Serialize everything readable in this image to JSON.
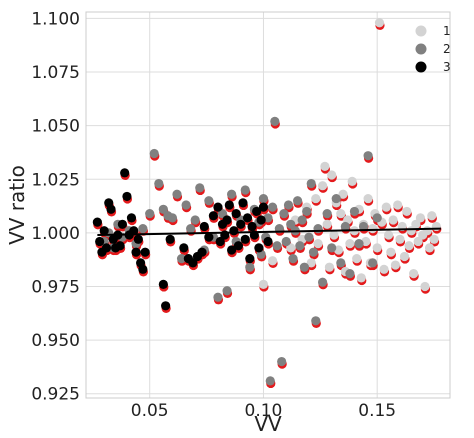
{
  "chart_data": {
    "type": "scatter",
    "title": "",
    "xlabel": "VV",
    "ylabel": "VV ratio",
    "xlim": [
      0.022,
      0.182
    ],
    "ylim": [
      0.923,
      1.103
    ],
    "x_ticks": [
      0.05,
      0.1,
      0.15
    ],
    "x_tick_labels": [
      "0.05",
      "0.10",
      "0.15"
    ],
    "y_ticks": [
      0.925,
      0.95,
      0.975,
      1.0,
      1.025,
      1.05,
      1.075,
      1.1
    ],
    "y_tick_labels": [
      "0.925",
      "0.950",
      "0.975",
      "1.000",
      "1.025",
      "1.050",
      "1.075",
      "1.100"
    ],
    "grid": true,
    "legend_position": "top-right",
    "colors": {
      "1": "#d3d3d3",
      "2": "#808080",
      "3": "#000000",
      "shadow": "#e41a1c",
      "trend": "#000000",
      "grid": "#dddddd",
      "frame": "#cccccc"
    },
    "series": [
      {
        "name": "1",
        "points": [
          [
            0.1,
            0.976
          ],
          [
            0.104,
            0.987
          ],
          [
            0.112,
            0.993
          ],
          [
            0.114,
            1.006
          ],
          [
            0.117,
            0.997
          ],
          [
            0.119,
            1.012
          ],
          [
            0.121,
            0.986
          ],
          [
            0.123,
            1.016
          ],
          [
            0.124,
            0.995
          ],
          [
            0.126,
            1.022
          ],
          [
            0.127,
            1.031
          ],
          [
            0.128,
            1.004
          ],
          [
            0.129,
            0.984
          ],
          [
            0.13,
            1.027
          ],
          [
            0.131,
            0.999
          ],
          [
            0.132,
            1.014
          ],
          [
            0.133,
            0.992
          ],
          [
            0.134,
            1.009
          ],
          [
            0.135,
            1.018
          ],
          [
            0.136,
            0.982
          ],
          [
            0.137,
            1.006
          ],
          [
            0.138,
            0.995
          ],
          [
            0.139,
            1.024
          ],
          [
            0.14,
            1.001
          ],
          [
            0.141,
            0.988
          ],
          [
            0.142,
            1.011
          ],
          [
            0.143,
            0.979
          ],
          [
            0.144,
            1.004
          ],
          [
            0.145,
            0.996
          ],
          [
            0.146,
            1.016
          ],
          [
            0.147,
            0.986
          ],
          [
            0.148,
            1.002
          ],
          [
            0.149,
            1.009
          ],
          [
            0.15,
            0.993
          ],
          [
            0.151,
            1.098
          ],
          [
            0.152,
            1.005
          ],
          [
            0.153,
            0.983
          ],
          [
            0.154,
            1.012
          ],
          [
            0.155,
            0.999
          ],
          [
            0.156,
            0.991
          ],
          [
            0.157,
            1.006
          ],
          [
            0.158,
            0.985
          ],
          [
            0.159,
            1.013
          ],
          [
            0.16,
            0.997
          ],
          [
            0.161,
            1.003
          ],
          [
            0.162,
            0.989
          ],
          [
            0.163,
            1.01
          ],
          [
            0.164,
            0.994
          ],
          [
            0.165,
            1.001
          ],
          [
            0.166,
            0.981
          ],
          [
            0.167,
            1.004
          ],
          [
            0.168,
            0.996
          ],
          [
            0.169,
            1.007
          ],
          [
            0.17,
            0.999
          ],
          [
            0.171,
            0.975
          ],
          [
            0.172,
            1.001
          ],
          [
            0.173,
            0.993
          ],
          [
            0.174,
            1.008
          ],
          [
            0.175,
            0.997
          ],
          [
            0.176,
            1.003
          ]
        ]
      },
      {
        "name": "2",
        "points": [
          [
            0.03,
            0.996
          ],
          [
            0.032,
            1.0
          ],
          [
            0.034,
            0.993
          ],
          [
            0.036,
            1.004
          ],
          [
            0.038,
            0.998
          ],
          [
            0.041,
            1.001
          ],
          [
            0.044,
            0.995
          ],
          [
            0.047,
            1.002
          ],
          [
            0.05,
            1.009
          ],
          [
            0.052,
            1.037
          ],
          [
            0.054,
            1.023
          ],
          [
            0.056,
            1.011
          ],
          [
            0.058,
            1.008
          ],
          [
            0.06,
            1.007
          ],
          [
            0.062,
            1.018
          ],
          [
            0.064,
            0.988
          ],
          [
            0.066,
            1.013
          ],
          [
            0.068,
            1.002
          ],
          [
            0.07,
            1.006
          ],
          [
            0.072,
            1.021
          ],
          [
            0.074,
            0.992
          ],
          [
            0.076,
            1.015
          ],
          [
            0.078,
            0.998
          ],
          [
            0.08,
            0.97
          ],
          [
            0.082,
            1.009
          ],
          [
            0.084,
            0.973
          ],
          [
            0.086,
            1.018
          ],
          [
            0.088,
            0.996
          ],
          [
            0.09,
            1.006
          ],
          [
            0.092,
            1.02
          ],
          [
            0.094,
            0.984
          ],
          [
            0.096,
            1.011
          ],
          [
            0.098,
            1.005
          ],
          [
            0.099,
            0.99
          ],
          [
            0.1,
            1.016
          ],
          [
            0.101,
            0.998
          ],
          [
            0.102,
            1.007
          ],
          [
            0.103,
            0.931
          ],
          [
            0.104,
            1.012
          ],
          [
            0.105,
            1.052
          ],
          [
            0.106,
            0.994
          ],
          [
            0.107,
            1.002
          ],
          [
            0.108,
            0.94
          ],
          [
            0.109,
            1.009
          ],
          [
            0.11,
            0.996
          ],
          [
            0.111,
            1.013
          ],
          [
            0.112,
            1.004
          ],
          [
            0.113,
            0.988
          ],
          [
            0.114,
            1.001
          ],
          [
            0.115,
            1.015
          ],
          [
            0.116,
            0.994
          ],
          [
            0.117,
            1.006
          ],
          [
            0.118,
            0.984
          ],
          [
            0.119,
            1.01
          ],
          [
            0.12,
            0.998
          ],
          [
            0.121,
            1.023
          ],
          [
            0.122,
            0.991
          ],
          [
            0.123,
            0.959
          ],
          [
            0.124,
            1.002
          ],
          [
            0.126,
            0.977
          ],
          [
            0.128,
            1.009
          ],
          [
            0.13,
            0.993
          ],
          [
            0.132,
            1.016
          ],
          [
            0.134,
            0.986
          ],
          [
            0.136,
            1.003
          ],
          [
            0.138,
            0.981
          ],
          [
            0.14,
            1.01
          ],
          [
            0.142,
            0.995
          ],
          [
            0.144,
            1.003
          ],
          [
            0.146,
            1.036
          ],
          [
            0.148,
            0.986
          ],
          [
            0.15,
            1.007
          ]
        ]
      },
      {
        "name": "3",
        "points": [
          [
            0.027,
            1.005
          ],
          [
            0.028,
            0.996
          ],
          [
            0.029,
            0.991
          ],
          [
            0.03,
            1.001
          ],
          [
            0.031,
            0.993
          ],
          [
            0.032,
            1.014
          ],
          [
            0.033,
            1.011
          ],
          [
            0.034,
            0.997
          ],
          [
            0.035,
            0.993
          ],
          [
            0.036,
            0.999
          ],
          [
            0.037,
            0.994
          ],
          [
            0.038,
            1.004
          ],
          [
            0.039,
            1.028
          ],
          [
            0.04,
            1.017
          ],
          [
            0.041,
            0.999
          ],
          [
            0.042,
            1.007
          ],
          [
            0.043,
            1.001
          ],
          [
            0.044,
            0.991
          ],
          [
            0.045,
            0.997
          ],
          [
            0.046,
            0.986
          ],
          [
            0.047,
            0.983
          ],
          [
            0.048,
            0.991
          ],
          [
            0.056,
            0.976
          ],
          [
            0.057,
            0.966
          ],
          [
            0.059,
            0.997
          ],
          [
            0.065,
            0.993
          ],
          [
            0.067,
            0.988
          ],
          [
            0.069,
            0.986
          ],
          [
            0.071,
            0.989
          ],
          [
            0.073,
            0.991
          ],
          [
            0.074,
            1.003
          ],
          [
            0.076,
            0.998
          ],
          [
            0.078,
            1.008
          ],
          [
            0.08,
            1.012
          ],
          [
            0.081,
            0.996
          ],
          [
            0.082,
            1.004
          ],
          [
            0.083,
            0.999
          ],
          [
            0.084,
            1.006
          ],
          [
            0.085,
            1.013
          ],
          [
            0.086,
            0.992
          ],
          [
            0.087,
            1.001
          ],
          [
            0.088,
            1.009
          ],
          [
            0.089,
            0.994
          ],
          [
            0.09,
            1.004
          ],
          [
            0.091,
            1.014
          ],
          [
            0.092,
            0.997
          ],
          [
            0.093,
            1.007
          ],
          [
            0.094,
            0.988
          ],
          [
            0.095,
            1.003
          ],
          [
            0.096,
            0.999
          ],
          [
            0.097,
            1.01
          ],
          [
            0.098,
            0.993
          ],
          [
            0.099,
            1.006
          ],
          [
            0.1,
            1.012
          ],
          [
            0.102,
            0.996
          ]
        ]
      }
    ],
    "trendline": {
      "x": [
        0.027,
        0.178
      ],
      "y": [
        0.999,
        1.002
      ]
    }
  }
}
